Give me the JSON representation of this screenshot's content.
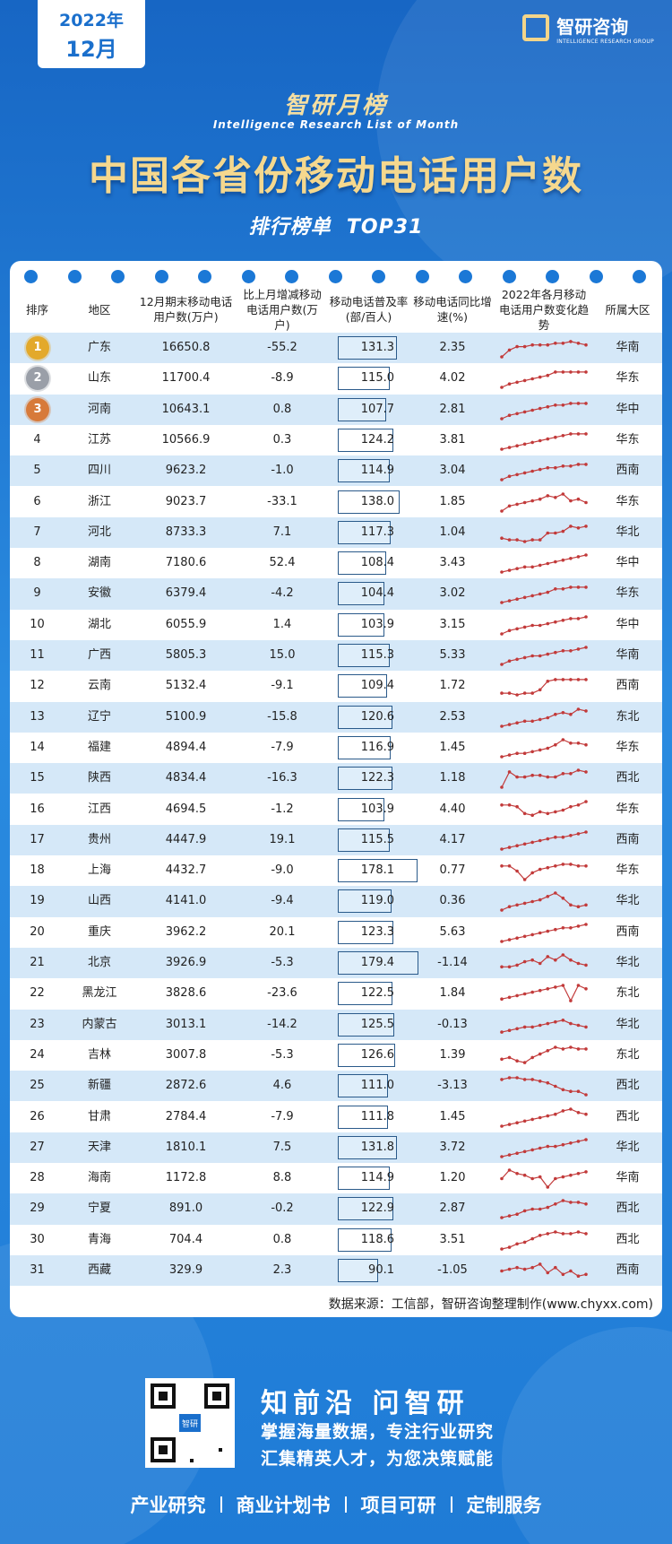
{
  "header": {
    "year": "2022年",
    "month": "12月",
    "logo": "智研咨询",
    "logo_en": "INTELLIGENCE RESEARCH GROUP",
    "series": "智研月榜",
    "series_en": "Intelligence Research List of Month",
    "title": "中国各省份移动电话用户数",
    "tag": "排行榜单  TOP31"
  },
  "table": {
    "columns": [
      "排序",
      "地区",
      "12月期末移动电话用户数(万户)",
      "比上月增减移动电话用户数(万户)",
      "移动电话普及率(部/百人)",
      "移动电话同比增速(%)",
      "2022年各月移动电话用户数变化趋势",
      "所属大区"
    ],
    "rows": [
      {
        "rank": "1",
        "region": "广东",
        "users": "16650.8",
        "change": "-55.2",
        "penetration": "131.3",
        "growth": "2.35",
        "trend": [
          0,
          4,
          6,
          6,
          7,
          7,
          7,
          8,
          8,
          9,
          8,
          7
        ],
        "area": "华南"
      },
      {
        "rank": "2",
        "region": "山东",
        "users": "11700.4",
        "change": "-8.9",
        "penetration": "115.0",
        "growth": "4.02",
        "trend": [
          0,
          2,
          3,
          4,
          5,
          6,
          7,
          9,
          9,
          9,
          9,
          9
        ],
        "area": "华东"
      },
      {
        "rank": "3",
        "region": "河南",
        "users": "10643.1",
        "change": "0.8",
        "penetration": "107.7",
        "growth": "2.81",
        "trend": [
          0,
          2,
          3,
          4,
          5,
          6,
          7,
          8,
          8,
          9,
          9,
          9
        ],
        "area": "华中"
      },
      {
        "rank": "4",
        "region": "江苏",
        "users": "10566.9",
        "change": "0.3",
        "penetration": "124.2",
        "growth": "3.81",
        "trend": [
          0,
          1,
          2,
          3,
          4,
          5,
          6,
          7,
          8,
          9,
          9,
          9
        ],
        "area": "华东"
      },
      {
        "rank": "5",
        "region": "四川",
        "users": "9623.2",
        "change": "-1.0",
        "penetration": "114.9",
        "growth": "3.04",
        "trend": [
          0,
          2,
          3,
          4,
          5,
          6,
          7,
          7,
          8,
          8,
          9,
          9
        ],
        "area": "西南"
      },
      {
        "rank": "6",
        "region": "浙江",
        "users": "9023.7",
        "change": "-33.1",
        "penetration": "138.0",
        "growth": "1.85",
        "trend": [
          0,
          3,
          4,
          5,
          6,
          7,
          9,
          8,
          10,
          6,
          7,
          5
        ],
        "area": "华东"
      },
      {
        "rank": "7",
        "region": "河北",
        "users": "8733.3",
        "change": "7.1",
        "penetration": "117.3",
        "growth": "1.04",
        "trend": [
          2,
          1,
          1,
          0,
          1,
          1,
          5,
          5,
          6,
          9,
          8,
          9
        ],
        "area": "华北"
      },
      {
        "rank": "8",
        "region": "湖南",
        "users": "7180.6",
        "change": "52.4",
        "penetration": "108.4",
        "growth": "3.43",
        "trend": [
          0,
          1,
          2,
          3,
          3,
          4,
          5,
          6,
          7,
          8,
          9,
          10
        ],
        "area": "华中"
      },
      {
        "rank": "9",
        "region": "安徽",
        "users": "6379.4",
        "change": "-4.2",
        "penetration": "104.4",
        "growth": "3.02",
        "trend": [
          0,
          1,
          2,
          3,
          4,
          5,
          6,
          8,
          8,
          9,
          9,
          9
        ],
        "area": "华东"
      },
      {
        "rank": "10",
        "region": "湖北",
        "users": "6055.9",
        "change": "1.4",
        "penetration": "103.9",
        "growth": "3.15",
        "trend": [
          0,
          2,
          3,
          4,
          5,
          5,
          6,
          7,
          8,
          9,
          9,
          10
        ],
        "area": "华中"
      },
      {
        "rank": "11",
        "region": "广西",
        "users": "5805.3",
        "change": "15.0",
        "penetration": "115.3",
        "growth": "5.33",
        "trend": [
          0,
          2,
          3,
          4,
          5,
          5,
          6,
          7,
          8,
          8,
          9,
          10
        ],
        "area": "华南"
      },
      {
        "rank": "12",
        "region": "云南",
        "users": "5132.4",
        "change": "-9.1",
        "penetration": "109.4",
        "growth": "1.72",
        "trend": [
          1,
          1,
          0,
          1,
          1,
          3,
          8,
          9,
          9,
          9,
          9,
          9
        ],
        "area": "西南"
      },
      {
        "rank": "13",
        "region": "辽宁",
        "users": "5100.9",
        "change": "-15.8",
        "penetration": "120.6",
        "growth": "2.53",
        "trend": [
          0,
          1,
          2,
          3,
          3,
          4,
          5,
          7,
          8,
          7,
          10,
          9
        ],
        "area": "东北"
      },
      {
        "rank": "14",
        "region": "福建",
        "users": "4894.4",
        "change": "-7.9",
        "penetration": "116.9",
        "growth": "1.45",
        "trend": [
          0,
          1,
          2,
          2,
          3,
          4,
          5,
          7,
          10,
          8,
          8,
          7
        ],
        "area": "华东"
      },
      {
        "rank": "15",
        "region": "陕西",
        "users": "4834.4",
        "change": "-16.3",
        "penetration": "122.3",
        "growth": "1.18",
        "trend": [
          0,
          9,
          6,
          6,
          7,
          7,
          6,
          6,
          8,
          8,
          10,
          9
        ],
        "area": "西北"
      },
      {
        "rank": "16",
        "region": "江西",
        "users": "4694.5",
        "change": "-1.2",
        "penetration": "103.9",
        "growth": "4.40",
        "trend": [
          8,
          8,
          7,
          3,
          2,
          4,
          3,
          4,
          5,
          7,
          8,
          10
        ],
        "area": "华东"
      },
      {
        "rank": "17",
        "region": "贵州",
        "users": "4447.9",
        "change": "19.1",
        "penetration": "115.5",
        "growth": "4.17",
        "trend": [
          0,
          1,
          2,
          3,
          4,
          5,
          6,
          7,
          7,
          8,
          9,
          10
        ],
        "area": "西南"
      },
      {
        "rank": "18",
        "region": "上海",
        "users": "4432.7",
        "change": "-9.0",
        "penetration": "178.1",
        "growth": "0.77",
        "trend": [
          8,
          8,
          5,
          0,
          4,
          6,
          7,
          8,
          9,
          9,
          8,
          8
        ],
        "area": "华东"
      },
      {
        "rank": "19",
        "region": "山西",
        "users": "4141.0",
        "change": "-9.4",
        "penetration": "119.0",
        "growth": "0.36",
        "trend": [
          0,
          2,
          3,
          4,
          5,
          6,
          8,
          10,
          7,
          3,
          2,
          3
        ],
        "area": "华北"
      },
      {
        "rank": "20",
        "region": "重庆",
        "users": "3962.2",
        "change": "20.1",
        "penetration": "123.3",
        "growth": "5.63",
        "trend": [
          0,
          1,
          2,
          3,
          4,
          5,
          6,
          7,
          8,
          8,
          9,
          10
        ],
        "area": "西南"
      },
      {
        "rank": "21",
        "region": "北京",
        "users": "3926.9",
        "change": "-5.3",
        "penetration": "179.4",
        "growth": "-1.14",
        "trend": [
          3,
          3,
          4,
          6,
          7,
          5,
          9,
          7,
          10,
          7,
          5,
          4
        ],
        "area": "华北"
      },
      {
        "rank": "22",
        "region": "黑龙江",
        "users": "3828.6",
        "change": "-23.6",
        "penetration": "122.5",
        "growth": "1.84",
        "trend": [
          2,
          3,
          4,
          5,
          6,
          7,
          8,
          9,
          10,
          1,
          10,
          8
        ],
        "area": "东北"
      },
      {
        "rank": "23",
        "region": "内蒙古",
        "users": "3013.1",
        "change": "-14.2",
        "penetration": "125.5",
        "growth": "-0.13",
        "trend": [
          1,
          2,
          3,
          4,
          4,
          5,
          6,
          7,
          8,
          6,
          5,
          4
        ],
        "area": "华北"
      },
      {
        "rank": "24",
        "region": "吉林",
        "users": "3007.8",
        "change": "-5.3",
        "penetration": "126.6",
        "growth": "1.39",
        "trend": [
          3,
          4,
          2,
          1,
          4,
          6,
          8,
          10,
          9,
          10,
          9,
          9
        ],
        "area": "东北"
      },
      {
        "rank": "25",
        "region": "新疆",
        "users": "2872.6",
        "change": "4.6",
        "penetration": "111.0",
        "growth": "-3.13",
        "trend": [
          9,
          10,
          10,
          9,
          9,
          8,
          7,
          5,
          3,
          2,
          2,
          0
        ],
        "area": "西北"
      },
      {
        "rank": "26",
        "region": "甘肃",
        "users": "2784.4",
        "change": "-7.9",
        "penetration": "111.8",
        "growth": "1.45",
        "trend": [
          0,
          1,
          2,
          3,
          4,
          5,
          6,
          7,
          9,
          10,
          8,
          7
        ],
        "area": "西北"
      },
      {
        "rank": "27",
        "region": "天津",
        "users": "1810.1",
        "change": "7.5",
        "penetration": "131.8",
        "growth": "3.72",
        "trend": [
          0,
          1,
          2,
          3,
          4,
          5,
          6,
          6,
          7,
          8,
          9,
          10
        ],
        "area": "华北"
      },
      {
        "rank": "28",
        "region": "海南",
        "users": "1172.8",
        "change": "8.8",
        "penetration": "114.9",
        "growth": "1.20",
        "trend": [
          5,
          10,
          8,
          7,
          5,
          6,
          0,
          5,
          6,
          7,
          8,
          9
        ],
        "area": "华南"
      },
      {
        "rank": "29",
        "region": "宁夏",
        "users": "891.0",
        "change": "-0.2",
        "penetration": "122.9",
        "growth": "2.87",
        "trend": [
          0,
          1,
          2,
          4,
          5,
          5,
          6,
          8,
          10,
          9,
          9,
          8
        ],
        "area": "西北"
      },
      {
        "rank": "30",
        "region": "青海",
        "users": "704.4",
        "change": "0.8",
        "penetration": "118.6",
        "growth": "3.51",
        "trend": [
          0,
          1,
          3,
          4,
          6,
          8,
          9,
          10,
          9,
          9,
          10,
          9
        ],
        "area": "西北"
      },
      {
        "rank": "31",
        "region": "西藏",
        "users": "329.9",
        "change": "2.3",
        "penetration": "90.1",
        "growth": "-1.05",
        "trend": [
          5,
          6,
          7,
          6,
          7,
          9,
          4,
          7,
          3,
          5,
          2,
          3
        ],
        "area": "西南"
      }
    ],
    "source": "数据来源：工信部，智研咨询整理制作(www.chyxx.com)"
  },
  "footer": {
    "qr_label": "智研",
    "slogan": "知前沿 问智研",
    "lines": [
      "掌握海量数据，专注行业研究",
      "汇集精英人才，为您决策赋能"
    ],
    "services": [
      "产业研究",
      "商业计划书",
      "项目可研",
      "定制服务"
    ]
  }
}
